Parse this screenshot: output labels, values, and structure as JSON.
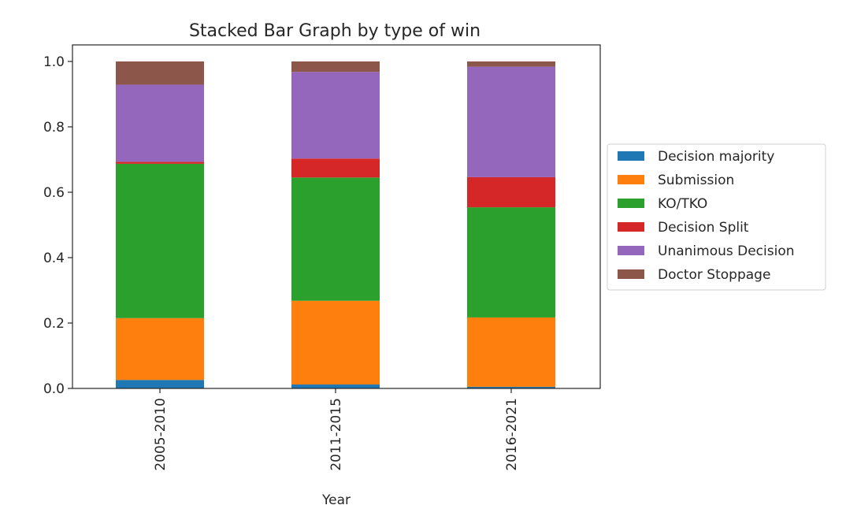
{
  "chart_data": {
    "type": "bar",
    "stacked": true,
    "title": "Stacked Bar Graph by type of win",
    "xlabel": "Year",
    "ylabel": "",
    "ylim": [
      0,
      1.0
    ],
    "yticks": [
      "0.0",
      "0.2",
      "0.4",
      "0.6",
      "0.8",
      "1.0"
    ],
    "categories": [
      "2005-2010",
      "2011-2015",
      "2016-2021"
    ],
    "series": [
      {
        "name": "Decision majority",
        "color": "#1f77b4",
        "values": [
          0.026,
          0.012,
          0.005
        ]
      },
      {
        "name": "Submission",
        "color": "#ff7f0e",
        "values": [
          0.189,
          0.256,
          0.212
        ]
      },
      {
        "name": "KO/TKO",
        "color": "#2ca02c",
        "values": [
          0.472,
          0.377,
          0.337
        ]
      },
      {
        "name": "Decision Split",
        "color": "#d62728",
        "values": [
          0.006,
          0.058,
          0.092
        ]
      },
      {
        "name": "Unanimous Decision",
        "color": "#9467bd",
        "values": [
          0.236,
          0.265,
          0.338
        ]
      },
      {
        "name": "Doctor Stoppage",
        "color": "#8c564b",
        "values": [
          0.071,
          0.032,
          0.016
        ]
      }
    ],
    "grid": false,
    "legend": "right"
  }
}
